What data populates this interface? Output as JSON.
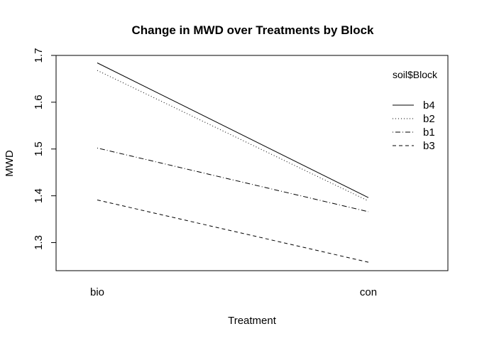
{
  "chart_data": {
    "type": "line",
    "title": "Change in MWD over Treatments by Block",
    "xlabel": "Treatment",
    "ylabel": "MWD",
    "categories": [
      "bio",
      "con"
    ],
    "ylim": [
      1.24,
      1.7
    ],
    "yticks": [
      "1.3",
      "1.4",
      "1.5",
      "1.6",
      "1.7"
    ],
    "legend": {
      "title": "soil$Block",
      "position": "top-right"
    },
    "series": [
      {
        "name": "b4",
        "values": [
          1.684,
          1.396
        ],
        "linetype": "solid"
      },
      {
        "name": "b2",
        "values": [
          1.668,
          1.389
        ],
        "linetype": "dotted"
      },
      {
        "name": "b1",
        "values": [
          1.502,
          1.366
        ],
        "linetype": "dotdash"
      },
      {
        "name": "b3",
        "values": [
          1.391,
          1.258
        ],
        "linetype": "dashed"
      }
    ],
    "grid": false,
    "line_color": "#000000"
  }
}
